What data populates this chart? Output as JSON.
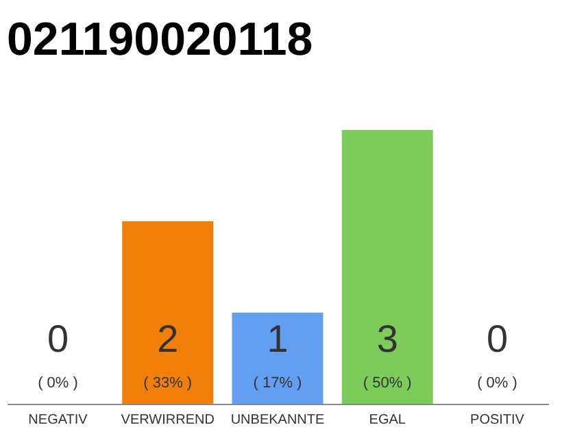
{
  "chart_data": {
    "type": "bar",
    "title": "021190020118",
    "categories": [
      "NEGATIV",
      "VERWIRREND",
      "UNBEKANNTE",
      "EGAL",
      "POSITIV"
    ],
    "values": [
      0,
      2,
      1,
      3,
      0
    ],
    "colors": [
      "#eeeeee",
      "#f07f0a",
      "#649ef0",
      "#7dcb5a",
      "#eeeeee"
    ],
    "value_labels": [
      "0",
      "2",
      "1",
      "3",
      "0"
    ],
    "annotations": [
      "( 0% )",
      "( 33% )",
      "( 17% )",
      "( 50% )",
      "( 0% )"
    ]
  }
}
